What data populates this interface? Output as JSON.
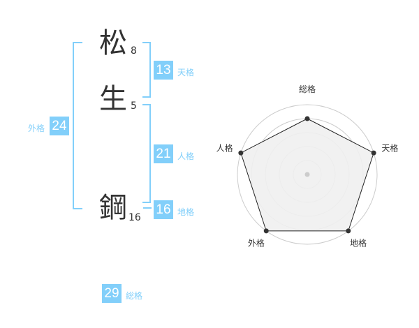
{
  "name": {
    "chars": [
      {
        "char": "松",
        "strokes": "8"
      },
      {
        "char": "生",
        "strokes": "5"
      },
      {
        "char": "鋼",
        "strokes": "16"
      }
    ]
  },
  "kaku": {
    "tenkaku": {
      "value": "13",
      "label": "天格"
    },
    "jinkaku": {
      "value": "21",
      "label": "人格"
    },
    "chikaku": {
      "value": "16",
      "label": "地格"
    },
    "gaikaku": {
      "value": "24",
      "label": "外格"
    },
    "soukaku": {
      "value": "29",
      "label": "総格"
    }
  },
  "colors": {
    "accent": "#82cffa",
    "text": "#333333"
  },
  "chart_data": {
    "type": "radar",
    "axes": [
      "総格",
      "天格",
      "地格",
      "外格",
      "人格"
    ],
    "values": [
      4,
      5,
      5,
      5,
      5
    ],
    "range": [
      0,
      5
    ],
    "rings": 5
  }
}
